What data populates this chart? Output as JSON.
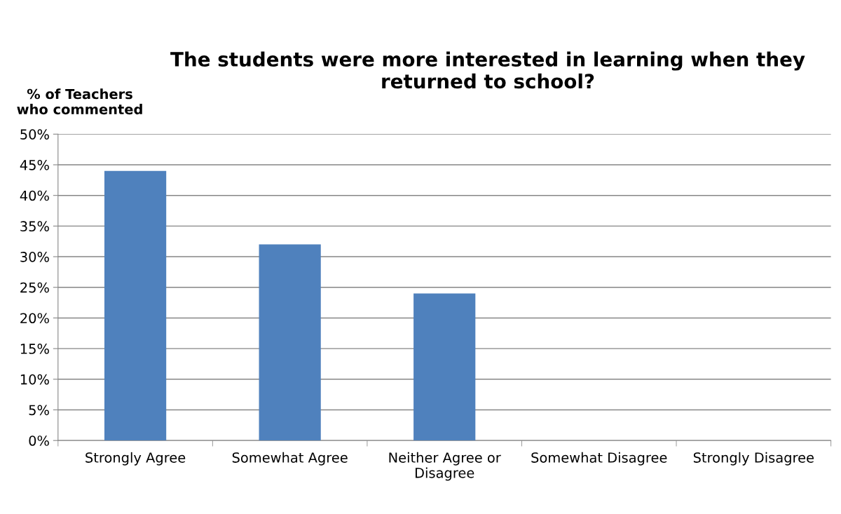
{
  "chart_data": {
    "type": "bar",
    "title": "The students were more interested in learning when they\nreturned to school?",
    "ylabel": "% of Teachers\nwho commented",
    "categories": [
      "Strongly Agree",
      "Somewhat Agree",
      "Neither Agree or\nDisagree",
      "Somewhat Disagree",
      "Strongly Disagree"
    ],
    "values": [
      44,
      32,
      24,
      0,
      0
    ],
    "color": "#4f81bd",
    "ylim": [
      0,
      50
    ],
    "yticks": [
      {
        "value": 0,
        "label": "0%"
      },
      {
        "value": 5,
        "label": "5%"
      },
      {
        "value": 10,
        "label": "10%"
      },
      {
        "value": 15,
        "label": "15%"
      },
      {
        "value": 20,
        "label": "20%"
      },
      {
        "value": 25,
        "label": "25%"
      },
      {
        "value": 30,
        "label": "30%"
      },
      {
        "value": 35,
        "label": "35%"
      },
      {
        "value": 40,
        "label": "40%"
      },
      {
        "value": 45,
        "label": "45%"
      },
      {
        "value": 50,
        "label": "50%"
      }
    ],
    "grid": "y",
    "legend": false
  }
}
